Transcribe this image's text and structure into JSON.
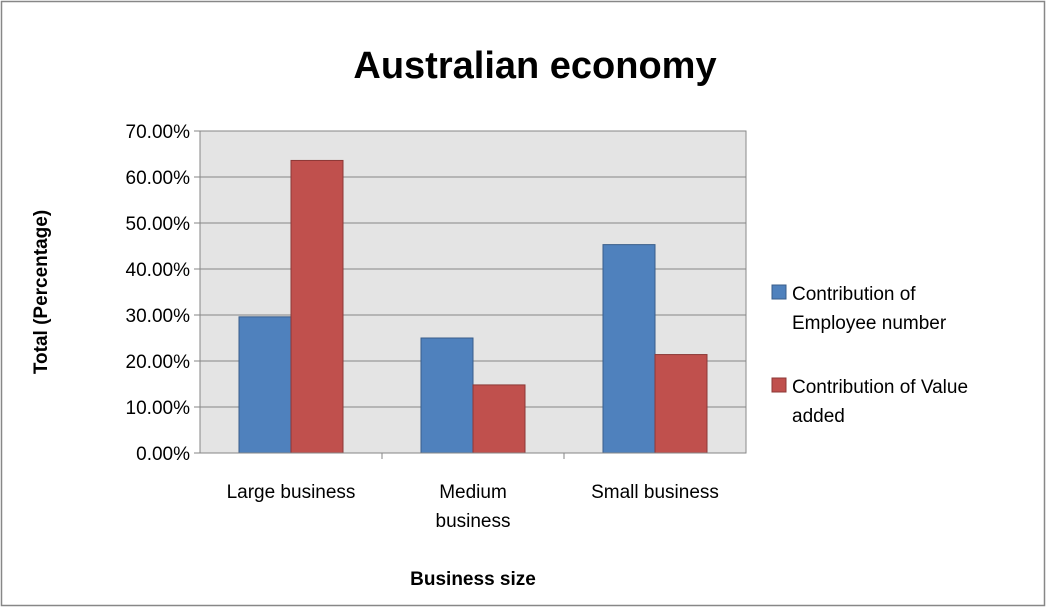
{
  "chart_data": {
    "type": "bar",
    "title": "Australian economy",
    "xlabel": "Business size",
    "ylabel": "Total (Percentage)",
    "categories": [
      [
        "Large business"
      ],
      [
        "Medium",
        "business"
      ],
      [
        "Small business"
      ]
    ],
    "series": [
      {
        "name": [
          "Contribution of",
          "Employee number"
        ],
        "values": [
          29.6,
          25.0,
          45.3
        ],
        "color": "#4F81BD",
        "edge": "#385D8A"
      },
      {
        "name": [
          "Contribution of Value",
          "added"
        ],
        "values": [
          63.6,
          14.8,
          21.4
        ],
        "color": "#C0504D",
        "edge": "#8C3836"
      }
    ],
    "ylim": [
      0,
      70
    ],
    "ytick_step": 10,
    "ytick_labels": [
      "0.00%",
      "10.00%",
      "20.00%",
      "30.00%",
      "40.00%",
      "50.00%",
      "60.00%",
      "70.00%"
    ],
    "grid": true,
    "plot_background": "#E4E4E4",
    "legend_position": "right"
  }
}
